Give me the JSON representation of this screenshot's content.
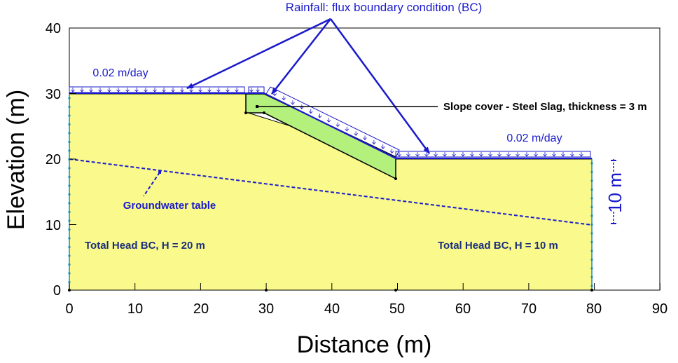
{
  "axes": {
    "x_title": "Distance (m)",
    "y_title": "Elevation (m)",
    "x_ticks": [
      "0",
      "10",
      "20",
      "30",
      "40",
      "50",
      "60",
      "70",
      "80",
      "90"
    ],
    "y_ticks": [
      "0",
      "10",
      "20",
      "30",
      "40"
    ]
  },
  "labels": {
    "rainfall": "Rainfall: flux boundary condition (BC)",
    "flux_left": "0.02 m/day",
    "flux_right": "0.02 m/day",
    "slope_cover": "Slope cover - Steel Slag, thickness = 3 m",
    "groundwater": "Groundwater table",
    "head_left": "Total Head BC, H = 20 m",
    "head_right": "Total Head BC, H = 10 m",
    "dimension": "10 m"
  },
  "colors": {
    "soil": "#fafa8c",
    "slag": "#b4f07c",
    "boundary_blue": "#1a1acc",
    "outline": "#000000"
  }
}
